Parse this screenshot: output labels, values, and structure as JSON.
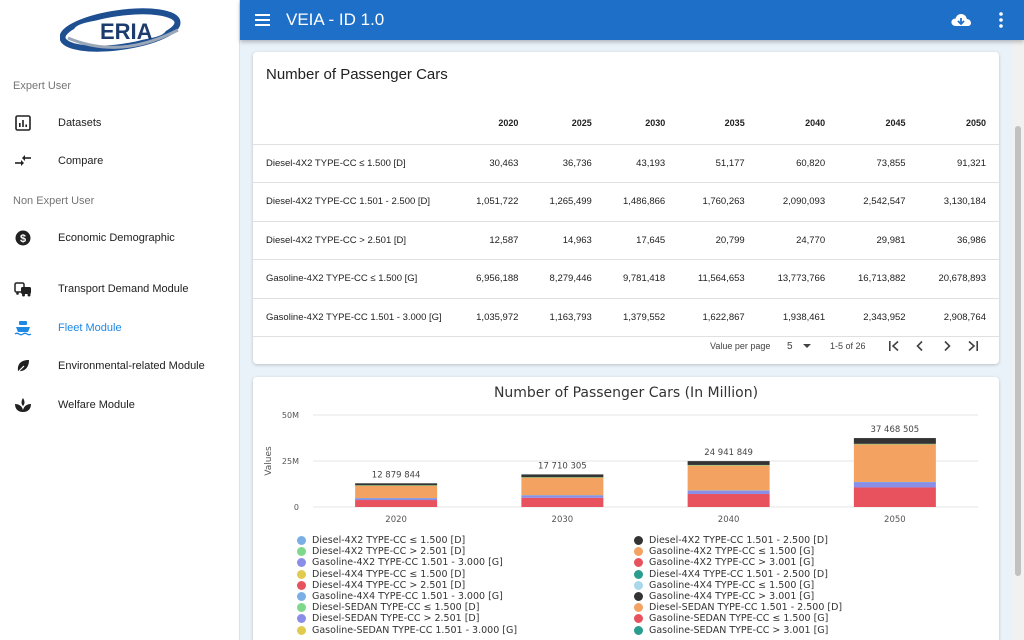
{
  "logo": {
    "text": "ERIA"
  },
  "sidebar": {
    "sections": [
      {
        "label": "Expert User"
      },
      {
        "label": "Non Expert User"
      }
    ],
    "items": [
      {
        "label": "Datasets",
        "icon": "bar-chart-icon"
      },
      {
        "label": "Compare",
        "icon": "compare-arrows-icon"
      },
      {
        "label": "Economic Demographic",
        "icon": "dollar-icon"
      },
      {
        "label": "Transport Demand Module",
        "icon": "vehicles-icon"
      },
      {
        "label": "Fleet Module",
        "icon": "ship-icon",
        "active": true
      },
      {
        "label": "Environmental-related Module",
        "icon": "leaf-icon"
      },
      {
        "label": "Welfare Module",
        "icon": "sprout-icon"
      }
    ]
  },
  "header": {
    "title": "VEIA - ID 1.0"
  },
  "table": {
    "title": "Number of Passenger Cars",
    "columns": [
      "",
      "2020",
      "2025",
      "2030",
      "2035",
      "2040",
      "2045",
      "2050"
    ],
    "rows": [
      [
        "Diesel-4X2 TYPE-CC ≤ 1.500 [D]",
        "30,463",
        "36,736",
        "43,193",
        "51,177",
        "60,820",
        "73,855",
        "91,321"
      ],
      [
        "Diesel-4X2 TYPE-CC 1.501 - 2.500 [D]",
        "1,051,722",
        "1,265,499",
        "1,486,866",
        "1,760,263",
        "2,090,093",
        "2,542,547",
        "3,130,184"
      ],
      [
        "Diesel-4X2 TYPE-CC > 2.501 [D]",
        "12,587",
        "14,963",
        "17,645",
        "20,799",
        "24,770",
        "29,981",
        "36,986"
      ],
      [
        "Gasoline-4X2 TYPE-CC ≤ 1.500 [G]",
        "6,956,188",
        "8,279,446",
        "9,781,418",
        "11,564,653",
        "13,773,766",
        "16,713,882",
        "20,678,893"
      ],
      [
        "Gasoline-4X2 TYPE-CC 1.501 - 3.000 [G]",
        "1,035,972",
        "1,163,793",
        "1,379,552",
        "1,622,867",
        "1,938,461",
        "2,343,952",
        "2,908,764"
      ]
    ],
    "pager": {
      "label": "Value per page",
      "page_size": "5",
      "range": "1-5 of 26"
    }
  },
  "chart_data": {
    "type": "bar",
    "title": "Number of Passenger Cars (In Million)",
    "ylabel": "Values",
    "xlabel": "",
    "ylim": [
      0,
      50000000
    ],
    "yticks": [
      "0",
      "25M",
      "50M"
    ],
    "categories": [
      "2020",
      "2030",
      "2040",
      "2050"
    ],
    "totals_labels": [
      "12 879 844",
      "17 710 305",
      "24 941 849",
      "37 468 505"
    ],
    "stacked": true,
    "series": [
      {
        "name": "Diesel-4X2 TYPE-CC ≤ 1.500 [D]",
        "color": "#7aaee5",
        "values": [
          30463,
          43193,
          60820,
          91321
        ]
      },
      {
        "name": "Diesel-4X2 TYPE-CC 1.501 - 2.500 [D]",
        "color": "#333333",
        "values": [
          1051722,
          1486866,
          2090093,
          3130184
        ]
      },
      {
        "name": "Diesel-4X2 TYPE-CC > 2.501 [D]",
        "color": "#7ed88a",
        "values": [
          12587,
          17645,
          24770,
          36986
        ]
      },
      {
        "name": "Gasoline-4X2 TYPE-CC ≤ 1.500 [G]",
        "color": "#f4a261",
        "values": [
          6956188,
          9781418,
          13773766,
          20678893
        ]
      },
      {
        "name": "Gasoline-4X2 TYPE-CC 1.501 - 3.000 [G]",
        "color": "#8a8ee6",
        "values": [
          1035972,
          1379552,
          1938461,
          2908764
        ]
      },
      {
        "name": "Gasoline-4X2 TYPE-CC > 3.001 [G]",
        "color": "#e8525e",
        "values": [
          3792912,
          5001631,
          7053939,
          10622357
        ]
      }
    ],
    "legend": [
      {
        "name": "Diesel-4X2 TYPE-CC ≤ 1.500 [D]",
        "color": "#7aaee5"
      },
      {
        "name": "Diesel-4X2 TYPE-CC 1.501 - 2.500 [D]",
        "color": "#333333"
      },
      {
        "name": "Diesel-4X2 TYPE-CC > 2.501 [D]",
        "color": "#7ed88a"
      },
      {
        "name": "Gasoline-4X2 TYPE-CC ≤ 1.500 [G]",
        "color": "#f4a261"
      },
      {
        "name": "Gasoline-4X2 TYPE-CC 1.501 - 3.000 [G]",
        "color": "#8a8ee6"
      },
      {
        "name": "Gasoline-4X2 TYPE-CC > 3.001 [G]",
        "color": "#e8525e"
      },
      {
        "name": "Diesel-4X4 TYPE-CC ≤ 1.500 [D]",
        "color": "#e0cb4f"
      },
      {
        "name": "Diesel-4X4 TYPE-CC 1.501 - 2.500 [D]",
        "color": "#2a9d8f"
      },
      {
        "name": "Diesel-4X4 TYPE-CC > 2.501 [D]",
        "color": "#e8525e"
      },
      {
        "name": "Gasoline-4X4 TYPE-CC ≤ 1.500 [G]",
        "color": "#a8d8ea"
      },
      {
        "name": "Gasoline-4X4 TYPE-CC 1.501 - 3.000 [G]",
        "color": "#7aaee5"
      },
      {
        "name": "Gasoline-4X4 TYPE-CC > 3.001 [G]",
        "color": "#333333"
      },
      {
        "name": "Diesel-SEDAN TYPE-CC ≤ 1.500 [D]",
        "color": "#7ed88a"
      },
      {
        "name": "Diesel-SEDAN TYPE-CC 1.501 - 2.500 [D]",
        "color": "#f4a261"
      },
      {
        "name": "Diesel-SEDAN TYPE-CC > 2.501 [D]",
        "color": "#8a8ee6"
      },
      {
        "name": "Gasoline-SEDAN TYPE-CC ≤ 1.500 [G]",
        "color": "#e8525e"
      },
      {
        "name": "Gasoline-SEDAN TYPE-CC 1.501 - 3.000 [G]",
        "color": "#e0cb4f"
      },
      {
        "name": "Gasoline-SEDAN TYPE-CC > 3.001 [G]",
        "color": "#2a9d8f"
      }
    ]
  },
  "colors": {
    "accent": "#1e6fc8",
    "active": "#1e88e5"
  }
}
